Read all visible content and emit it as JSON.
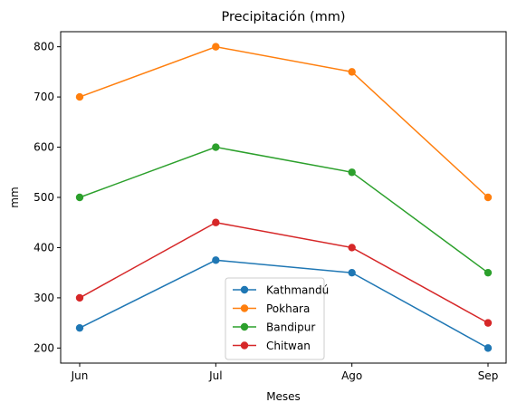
{
  "chart_data": {
    "type": "line",
    "title": "Precipitación (mm)",
    "xlabel": "Meses",
    "ylabel": "mm",
    "categories": [
      "Jun",
      "Jul",
      "Ago",
      "Sep"
    ],
    "ylim": [
      170,
      830
    ],
    "yticks": [
      200,
      300,
      400,
      500,
      600,
      700,
      800
    ],
    "grid": false,
    "legend_position": "bottom-center",
    "series": [
      {
        "name": "Kathmandú",
        "color": "#1f77b4",
        "values": [
          240,
          375,
          350,
          200
        ]
      },
      {
        "name": "Pokhara",
        "color": "#ff7f0e",
        "values": [
          700,
          800,
          750,
          500
        ]
      },
      {
        "name": "Bandipur",
        "color": "#2ca02c",
        "values": [
          500,
          600,
          550,
          350
        ]
      },
      {
        "name": "Chitwan",
        "color": "#d62728",
        "values": [
          300,
          450,
          400,
          250
        ]
      }
    ]
  }
}
